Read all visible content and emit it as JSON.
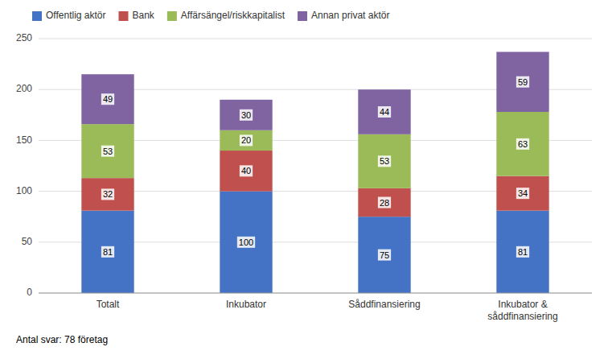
{
  "chart_data": {
    "type": "bar",
    "stacked": true,
    "categories": [
      "Totalt",
      "Inkubator",
      "Såddfinansiering",
      "Inkubator &\nsåddfinansiering"
    ],
    "series": [
      {
        "name": "Offentlig aktör",
        "color": "#4472C4",
        "values": [
          81,
          100,
          75,
          81
        ]
      },
      {
        "name": "Bank",
        "color": "#C0504D",
        "values": [
          32,
          40,
          28,
          34
        ]
      },
      {
        "name": "Affärsängel/riskkapitalist",
        "color": "#9BBB59",
        "values": [
          53,
          20,
          53,
          63
        ]
      },
      {
        "name": "Annan privat aktör",
        "color": "#8064A2",
        "values": [
          49,
          30,
          44,
          59
        ]
      }
    ],
    "ylim": [
      0,
      250
    ],
    "yticks": [
      0,
      50,
      100,
      150,
      200,
      250
    ],
    "grid": true,
    "legend": "top",
    "data_labels": true,
    "annotations": [
      "Antal svar: 78 företag"
    ]
  }
}
